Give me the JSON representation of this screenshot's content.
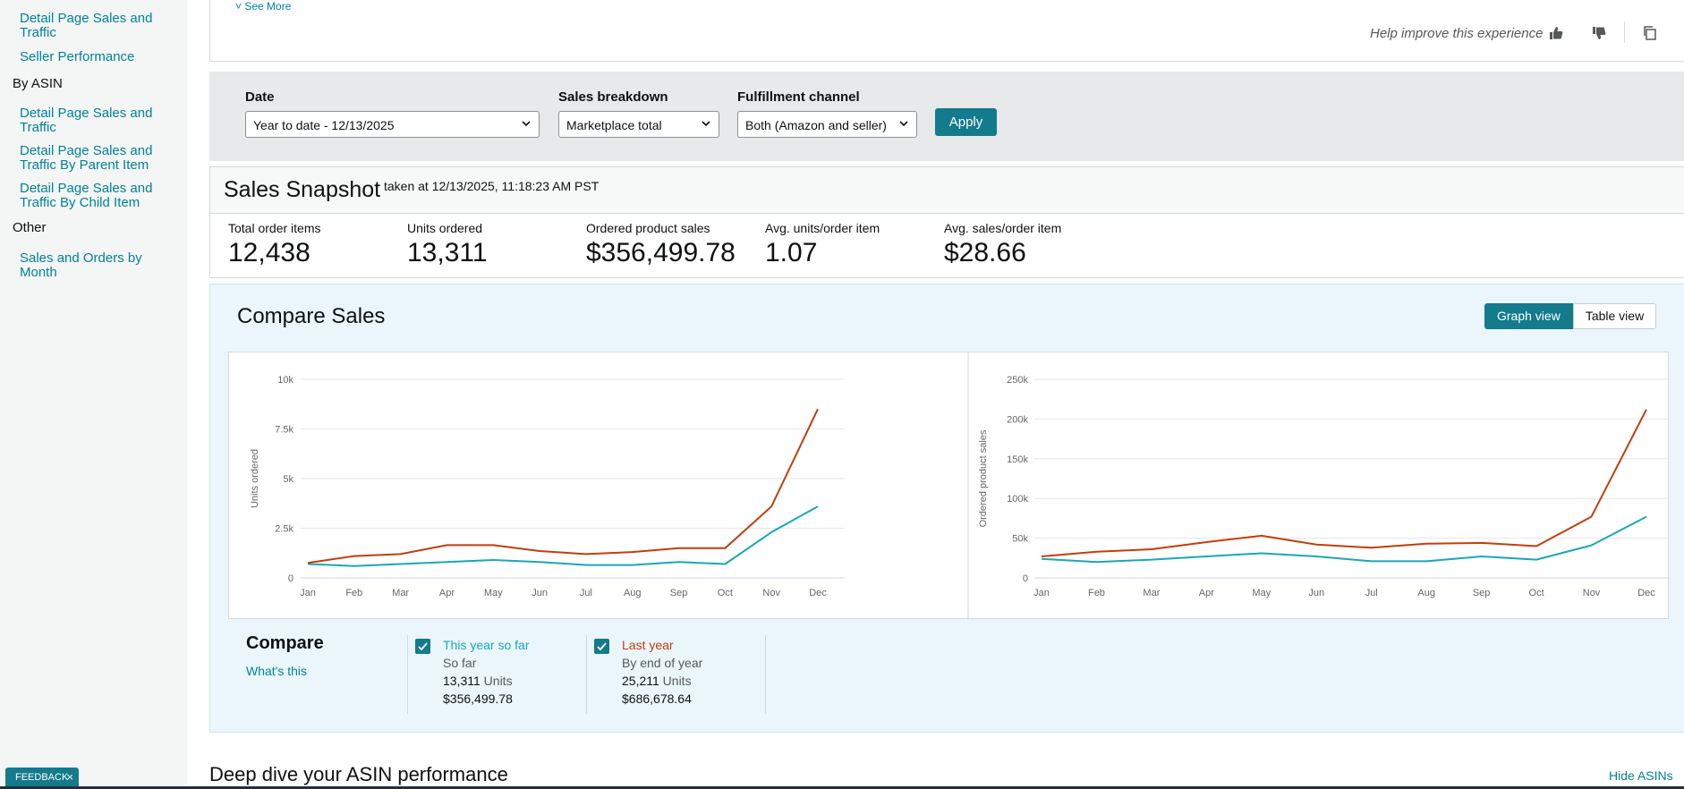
{
  "sidebar": {
    "items": [
      {
        "type": "link",
        "label": "Detail Page Sales and Traffic"
      },
      {
        "type": "link",
        "label": "Seller Performance"
      },
      {
        "type": "heading",
        "label": "By ASIN"
      },
      {
        "type": "link",
        "label": "Detail Page Sales and Traffic"
      },
      {
        "type": "link",
        "label": "Detail Page Sales and Traffic By Parent Item"
      },
      {
        "type": "link",
        "label": "Detail Page Sales and Traffic By Child Item"
      },
      {
        "type": "heading",
        "label": "Other"
      },
      {
        "type": "link",
        "label": "Sales and Orders by Month"
      }
    ]
  },
  "top_card": {
    "see_more": "˅ See More",
    "help_text": "Help improve this experience"
  },
  "filters": {
    "date_label": "Date",
    "date_value": "Year to date - 12/13/2025",
    "breakdown_label": "Sales breakdown",
    "breakdown_value": "Marketplace total",
    "channel_label": "Fulfillment channel",
    "channel_value": "Both (Amazon and seller)",
    "apply": "Apply"
  },
  "snapshot": {
    "title": "Sales Snapshot",
    "taken": "taken at 12/13/2025, 11:18:23 AM PST",
    "metrics": [
      {
        "label": "Total order items",
        "value": "12,438"
      },
      {
        "label": "Units ordered",
        "value": "13,311"
      },
      {
        "label": "Ordered product sales",
        "value": "$356,499.78"
      },
      {
        "label": "Avg. units/order item",
        "value": "1.07"
      },
      {
        "label": "Avg. sales/order item",
        "value": "$28.66"
      }
    ]
  },
  "compare": {
    "title": "Compare Sales",
    "graph_view": "Graph view",
    "table_view": "Table view",
    "legend_title": "Compare",
    "whats_this": "What's this",
    "this_year": {
      "name": "This year so far",
      "sub": "So far",
      "units": "13,311",
      "units_label": "Units",
      "sales": "$356,499.78"
    },
    "last_year": {
      "name": "Last year",
      "sub": "By end of year",
      "units": "25,211",
      "units_label": "Units",
      "sales": "$686,678.64"
    }
  },
  "colors": {
    "this_year": "#1aa7b7",
    "last_year": "#c23e0c",
    "accent": "#137b8c"
  },
  "chart_data": [
    {
      "type": "line",
      "ylabel": "Units ordered",
      "ylim": [
        0,
        10000
      ],
      "yticks": [
        "0",
        "2.5k",
        "5k",
        "7.5k",
        "10k"
      ],
      "categories": [
        "Jan",
        "Feb",
        "Mar",
        "Apr",
        "May",
        "Jun",
        "Jul",
        "Aug",
        "Sep",
        "Oct",
        "Nov",
        "Dec"
      ],
      "series": [
        {
          "name": "This year so far",
          "values": [
            700,
            600,
            700,
            800,
            900,
            800,
            650,
            650,
            800,
            700,
            2300,
            3600
          ]
        },
        {
          "name": "Last year",
          "values": [
            750,
            1100,
            1200,
            1650,
            1650,
            1350,
            1200,
            1300,
            1500,
            1500,
            3600,
            8500
          ]
        }
      ]
    },
    {
      "type": "line",
      "ylabel": "Ordered product sales",
      "ylim": [
        0,
        250000
      ],
      "yticks": [
        "0",
        "50k",
        "100k",
        "150k",
        "200k",
        "250k"
      ],
      "categories": [
        "Jan",
        "Feb",
        "Mar",
        "Apr",
        "May",
        "Jun",
        "Jul",
        "Aug",
        "Sep",
        "Oct",
        "Nov",
        "Dec"
      ],
      "series": [
        {
          "name": "This year so far",
          "values": [
            24000,
            20000,
            23000,
            27000,
            31000,
            27000,
            21000,
            21000,
            27000,
            23000,
            41000,
            77000
          ]
        },
        {
          "name": "Last year",
          "values": [
            27000,
            33000,
            36000,
            45000,
            53000,
            42000,
            38000,
            43000,
            44000,
            40000,
            77000,
            212000
          ]
        }
      ]
    }
  ],
  "bottom": {
    "deep_dive": "Deep dive your ASIN performance",
    "hide_asins": "Hide ASINs",
    "feedback": "FEEDBACK",
    "feedback_close": "×"
  }
}
